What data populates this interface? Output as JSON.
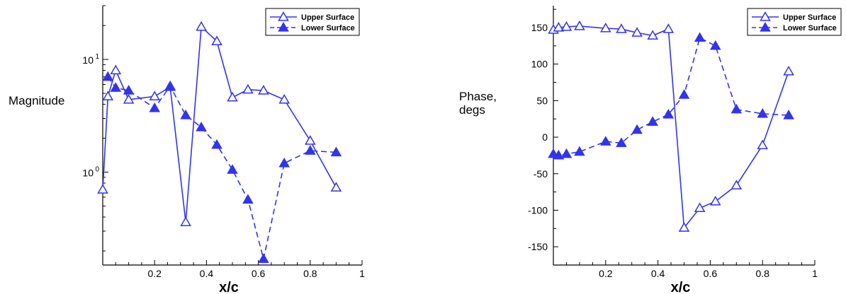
{
  "colors": {
    "series": "#3333ee",
    "axis": "#000000"
  },
  "chart_data": [
    {
      "type": "line",
      "ylabel": "Magnitude",
      "xlabel": "x/c",
      "yscale": "log",
      "xlim": [
        0,
        1
      ],
      "ylim": [
        0.15,
        30
      ],
      "xticks": [
        0.2,
        0.4,
        0.6,
        0.8,
        1
      ],
      "xtick_labels": [
        "0.2",
        "0.4",
        "0.6",
        "0.8",
        "1"
      ],
      "ytick_labels": [
        {
          "base": "10",
          "exp": "1",
          "value": 10
        },
        {
          "base": "10",
          "exp": "0",
          "value": 1
        }
      ],
      "legend": {
        "position": "top-right",
        "entries": [
          "Upper Surface",
          "Lower Surface"
        ]
      },
      "series": [
        {
          "name": "Upper Surface",
          "style": "solid",
          "marker": "open-triangle",
          "x": [
            0.0,
            0.02,
            0.05,
            0.1,
            0.2,
            0.26,
            0.32,
            0.38,
            0.44,
            0.5,
            0.56,
            0.62,
            0.7,
            0.8,
            0.9
          ],
          "y": [
            0.7,
            4.7,
            8.0,
            4.4,
            4.7,
            5.7,
            0.36,
            19.5,
            14.5,
            4.6,
            5.4,
            5.3,
            4.4,
            1.9,
            0.73
          ]
        },
        {
          "name": "Lower Surface",
          "style": "dashed",
          "marker": "filled-triangle",
          "x": [
            0.02,
            0.05,
            0.1,
            0.2,
            0.26,
            0.32,
            0.38,
            0.44,
            0.5,
            0.56,
            0.62,
            0.7,
            0.8,
            0.9
          ],
          "y": [
            7.0,
            5.6,
            5.3,
            3.7,
            5.8,
            3.2,
            2.5,
            1.75,
            1.05,
            0.57,
            0.17,
            1.2,
            1.55,
            1.5
          ]
        }
      ]
    },
    {
      "type": "line",
      "ylabel": "Phase,\ndegs",
      "ylabel_lines": [
        "Phase,",
        "degs"
      ],
      "xlabel": "x/c",
      "xlim": [
        0,
        1
      ],
      "ylim": [
        -175,
        180
      ],
      "xticks": [
        0.2,
        0.4,
        0.6,
        0.8,
        1
      ],
      "xtick_labels": [
        "0.2",
        "0.4",
        "0.6",
        "0.8",
        "1"
      ],
      "yticks": [
        150,
        100,
        50,
        0,
        -50,
        -100,
        -150
      ],
      "ytick_labels": [
        "150",
        "100",
        "50",
        "0",
        "-50",
        "-100",
        "-150"
      ],
      "legend": {
        "position": "top-right",
        "entries": [
          "Upper Surface",
          "Lower Surface"
        ]
      },
      "series": [
        {
          "name": "Upper Surface",
          "style": "solid",
          "marker": "open-triangle",
          "x": [
            0.0,
            0.02,
            0.05,
            0.1,
            0.2,
            0.26,
            0.32,
            0.38,
            0.44,
            0.5,
            0.56,
            0.62,
            0.7,
            0.8,
            0.9
          ],
          "y": [
            147,
            150,
            151,
            152,
            149,
            148,
            143,
            139,
            148,
            -124,
            -97,
            -88,
            -66,
            -11,
            90
          ]
        },
        {
          "name": "Lower Surface",
          "style": "dashed",
          "marker": "filled-triangle",
          "x": [
            0.0,
            0.02,
            0.05,
            0.1,
            0.2,
            0.26,
            0.32,
            0.38,
            0.44,
            0.5,
            0.56,
            0.62,
            0.7,
            0.8,
            0.9
          ],
          "y": [
            -23,
            -25,
            -23,
            -20,
            -6,
            -8,
            10,
            21,
            31,
            58,
            136,
            125,
            38,
            32,
            30
          ]
        }
      ]
    }
  ]
}
